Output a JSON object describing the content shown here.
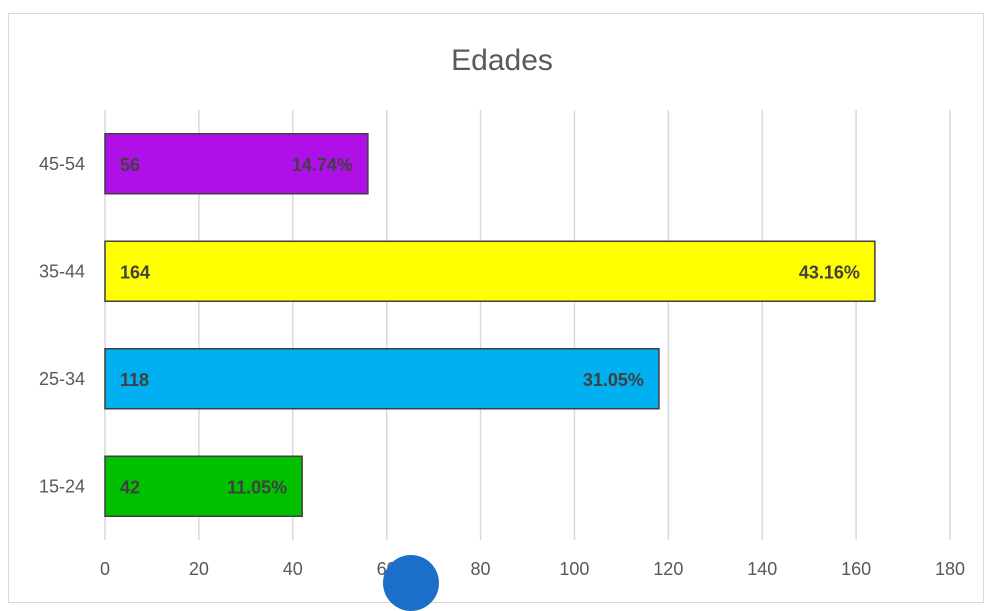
{
  "chart_data": {
    "type": "bar",
    "orientation": "horizontal",
    "title": "Edades",
    "categories": [
      "15-24",
      "25-34",
      "35-44",
      "45-54"
    ],
    "values": [
      42,
      118,
      164,
      56
    ],
    "percent_labels": [
      "11.05%",
      "31.05%",
      "43.16%",
      "14.74%"
    ],
    "bar_colors": [
      "#00c000",
      "#00b0f0",
      "#ffff00",
      "#b010e8"
    ],
    "xlim": [
      0,
      180
    ],
    "x_ticks": [
      0,
      20,
      40,
      60,
      80,
      100,
      120,
      140,
      160,
      180
    ],
    "grid": true,
    "legend": "none",
    "xlabel": "",
    "ylabel": ""
  }
}
